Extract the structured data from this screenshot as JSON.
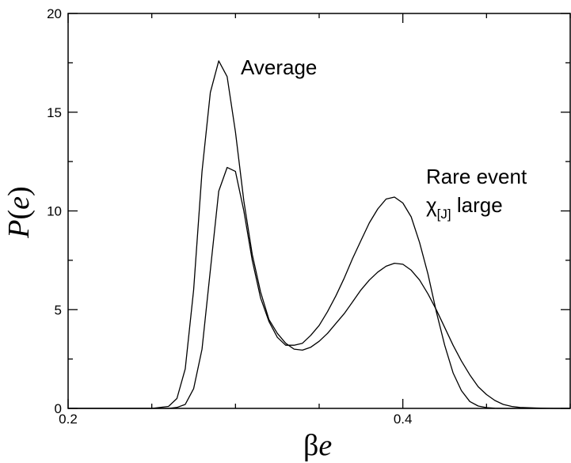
{
  "chart_data": {
    "type": "line",
    "xlim": [
      0.2,
      0.5
    ],
    "ylim": [
      0,
      20
    ],
    "x_ticks": [
      {
        "value": 0.2,
        "label": "0.2"
      },
      {
        "value": 0.4,
        "label": "0.4"
      }
    ],
    "y_ticks": [
      {
        "value": 0,
        "label": "0"
      },
      {
        "value": 5,
        "label": "5"
      },
      {
        "value": 10,
        "label": "10"
      },
      {
        "value": 15,
        "label": "15"
      },
      {
        "value": 20,
        "label": "20"
      }
    ],
    "xlabel": {
      "symbol": "β",
      "var": "e"
    },
    "ylabel": {
      "func": "P",
      "open": "(",
      "var": "e",
      "close": ")"
    },
    "grid": false,
    "series": [
      {
        "x": [
          0.2,
          0.25,
          0.26,
          0.265,
          0.27,
          0.275,
          0.28,
          0.285,
          0.29,
          0.295,
          0.3,
          0.305,
          0.31,
          0.315,
          0.32,
          0.325,
          0.33,
          0.335,
          0.34,
          0.345,
          0.35,
          0.355,
          0.36,
          0.365,
          0.37,
          0.375,
          0.38,
          0.385,
          0.39,
          0.395,
          0.4,
          0.405,
          0.41,
          0.415,
          0.42,
          0.425,
          0.43,
          0.435,
          0.44,
          0.445,
          0.45,
          0.455,
          0.46,
          0.465,
          0.47,
          0.48,
          0.49,
          0.5
        ],
        "y": [
          0,
          0,
          0.1,
          0.5,
          2.0,
          6.0,
          12.0,
          16.0,
          17.6,
          16.8,
          14.0,
          10.5,
          7.8,
          5.9,
          4.5,
          3.8,
          3.3,
          3.0,
          2.95,
          3.1,
          3.4,
          3.8,
          4.3,
          4.8,
          5.4,
          6.0,
          6.5,
          6.9,
          7.2,
          7.35,
          7.3,
          7.0,
          6.5,
          5.8,
          5.0,
          4.1,
          3.2,
          2.4,
          1.7,
          1.1,
          0.7,
          0.4,
          0.2,
          0.1,
          0.05,
          0.02,
          0,
          0
        ]
      },
      {
        "x": [
          0.2,
          0.26,
          0.265,
          0.27,
          0.275,
          0.28,
          0.285,
          0.29,
          0.295,
          0.3,
          0.305,
          0.31,
          0.315,
          0.32,
          0.325,
          0.33,
          0.335,
          0.34,
          0.345,
          0.35,
          0.355,
          0.36,
          0.365,
          0.37,
          0.375,
          0.38,
          0.385,
          0.39,
          0.395,
          0.4,
          0.405,
          0.41,
          0.415,
          0.42,
          0.425,
          0.43,
          0.435,
          0.44,
          0.445,
          0.45,
          0.455,
          0.46,
          0.465,
          0.47,
          0.48,
          0.5
        ],
        "y": [
          0,
          0,
          0.05,
          0.2,
          1.0,
          3.0,
          7.0,
          11.0,
          12.2,
          12.0,
          10.0,
          7.5,
          5.6,
          4.4,
          3.6,
          3.2,
          3.2,
          3.3,
          3.7,
          4.2,
          4.9,
          5.7,
          6.6,
          7.6,
          8.5,
          9.4,
          10.1,
          10.6,
          10.7,
          10.4,
          9.7,
          8.4,
          6.8,
          4.9,
          3.2,
          1.8,
          0.9,
          0.35,
          0.12,
          0.04,
          0.01,
          0,
          0,
          0,
          0,
          0
        ]
      }
    ],
    "annotations": [
      {
        "text": "Average"
      },
      {
        "text": "Rare event"
      },
      {
        "text_main": "χ",
        "text_sub": "[J]",
        "text_after": " large"
      }
    ]
  }
}
